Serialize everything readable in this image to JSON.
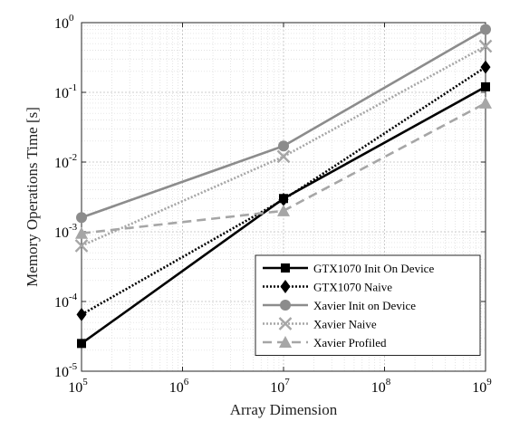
{
  "chart_data": {
    "type": "line",
    "title": "",
    "xlabel": "Array Dimension",
    "ylabel": "Memory Operations Time [s]",
    "xscale": "log",
    "yscale": "log",
    "xlim": [
      100000,
      1000000000
    ],
    "ylim": [
      1e-05,
      1
    ],
    "grid": true,
    "legend_position": "bottom-right",
    "x_ticks": [
      {
        "value": 100000,
        "base": "10",
        "exp": "5"
      },
      {
        "value": 1000000,
        "base": "10",
        "exp": "6"
      },
      {
        "value": 10000000,
        "base": "10",
        "exp": "7"
      },
      {
        "value": 100000000,
        "base": "10",
        "exp": "8"
      },
      {
        "value": 1000000000,
        "base": "10",
        "exp": "9"
      }
    ],
    "y_ticks": [
      {
        "value": 1e-05,
        "base": "10",
        "exp": "-5"
      },
      {
        "value": 0.0001,
        "base": "10",
        "exp": "-4"
      },
      {
        "value": 0.001,
        "base": "10",
        "exp": "-3"
      },
      {
        "value": 0.01,
        "base": "10",
        "exp": "-2"
      },
      {
        "value": 0.1,
        "base": "10",
        "exp": "-1"
      },
      {
        "value": 1,
        "base": "10",
        "exp": "0"
      }
    ],
    "x": [
      100000,
      10000000,
      1000000000
    ],
    "series": [
      {
        "name": "GTX1070 Init On Device",
        "values": [
          2.5e-05,
          0.003,
          0.12
        ],
        "color": "#000000",
        "dash": "solid",
        "marker": "square"
      },
      {
        "name": "GTX1070 Naive",
        "values": [
          6.5e-05,
          0.0029,
          0.23
        ],
        "color": "#000000",
        "dash": "dotted",
        "marker": "diamond"
      },
      {
        "name": "Xavier Init on Device",
        "values": [
          0.0016,
          0.017,
          0.8
        ],
        "color": "#8c8c8c",
        "dash": "solid",
        "marker": "circle"
      },
      {
        "name": "Xavier Naive",
        "values": [
          0.00063,
          0.012,
          0.46
        ],
        "color": "#a6a6a6",
        "dash": "dotted",
        "marker": "x"
      },
      {
        "name": "Xavier Profiled",
        "values": [
          0.00095,
          0.002,
          0.07
        ],
        "color": "#a6a6a6",
        "dash": "dashed",
        "marker": "triangle"
      }
    ]
  }
}
